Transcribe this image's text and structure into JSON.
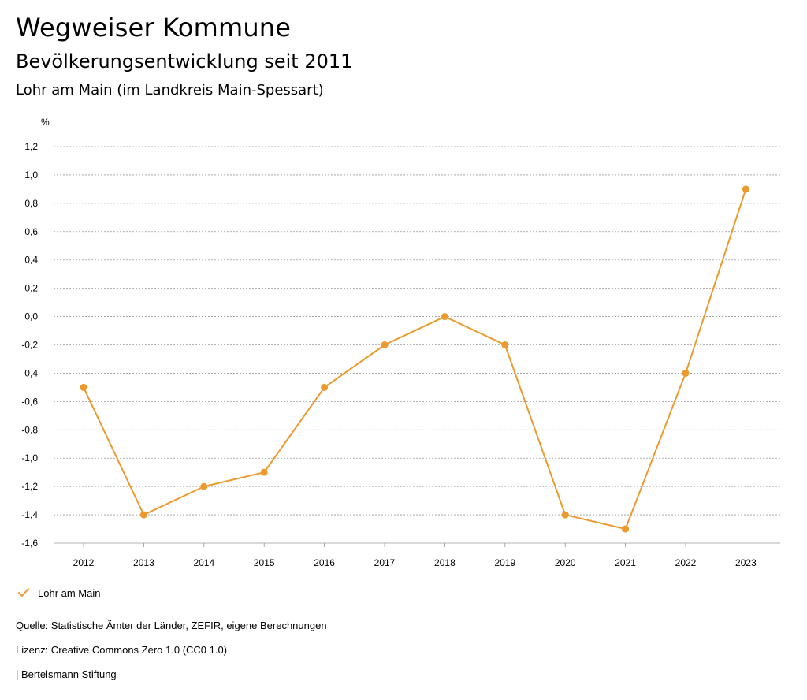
{
  "header": {
    "title": "Wegweiser Kommune",
    "subtitle": "Bevölkerungsentwicklung seit 2011",
    "place": "Lohr am Main (im Landkreis Main-Spessart)"
  },
  "colors": {
    "series": "#ec9a2d",
    "grid": "#9a9a9a",
    "text": "#000000"
  },
  "chart_data": {
    "type": "line",
    "title": "Bevölkerungsentwicklung seit 2011",
    "ylabel": "%",
    "xlabel": "",
    "ylim": [
      -1.6,
      1.2
    ],
    "yticks": [
      1.2,
      1.0,
      0.8,
      0.6,
      0.4,
      0.2,
      0.0,
      -0.2,
      -0.4,
      -0.6,
      -0.8,
      -1.0,
      -1.2,
      -1.4,
      -1.6
    ],
    "ytick_labels": [
      "1,2",
      "1,0",
      "0,8",
      "0,6",
      "0,4",
      "0,2",
      "0,0",
      "-0,2",
      "-0,4",
      "-0,6",
      "-0,8",
      "-1,0",
      "-1,2",
      "-1,4",
      "-1,6"
    ],
    "categories": [
      "2012",
      "2013",
      "2014",
      "2015",
      "2016",
      "2017",
      "2018",
      "2019",
      "2020",
      "2021",
      "2022",
      "2023"
    ],
    "series": [
      {
        "name": "Lohr am Main",
        "values": [
          -0.5,
          -1.4,
          -1.2,
          -1.1,
          -0.5,
          -0.2,
          0.0,
          -0.2,
          -1.4,
          -1.5,
          -0.4,
          0.9
        ]
      }
    ],
    "grid": true,
    "legend_position": "bottom-left"
  },
  "legend": {
    "label": "Lohr am Main"
  },
  "footer": {
    "source": "Quelle: Statistische Ämter der Länder, ZEFIR, eigene Berechnungen",
    "license": "Lizenz: Creative Commons Zero 1.0 (CC0 1.0)",
    "publisher": "| Bertelsmann Stiftung"
  }
}
